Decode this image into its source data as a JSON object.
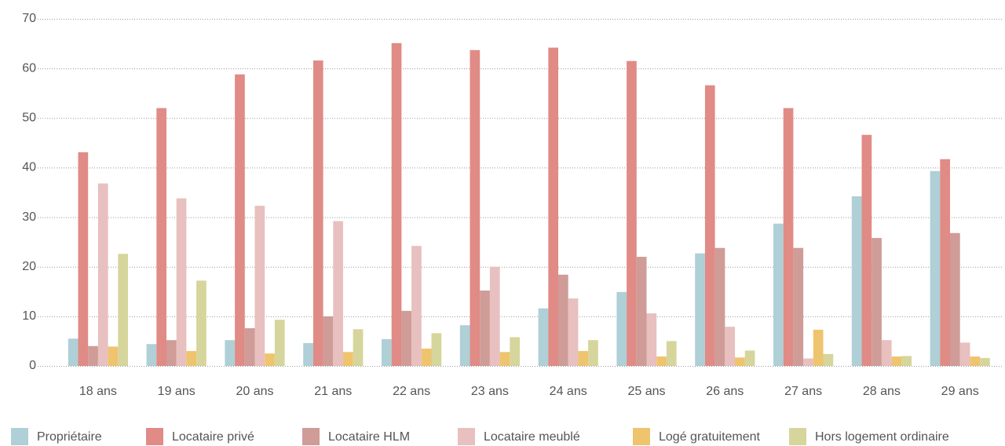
{
  "chart_data": {
    "type": "bar",
    "categories": [
      "18 ans",
      "19 ans",
      "20 ans",
      "21 ans",
      "22 ans",
      "23 ans",
      "24 ans",
      "25 ans",
      "26 ans",
      "27 ans",
      "28 ans",
      "29 ans"
    ],
    "series": [
      {
        "name": "Propriétaire",
        "color": "#aed0d6",
        "values": [
          5.5,
          4.4,
          5.2,
          4.6,
          5.4,
          8.2,
          11.6,
          14.9,
          22.7,
          28.7,
          34.2,
          39.3
        ]
      },
      {
        "name": "Locataire privé",
        "color": "#e08b86",
        "values": [
          43.1,
          52,
          58.8,
          61.6,
          65.1,
          63.7,
          64.2,
          61.5,
          56.6,
          52,
          46.6,
          41.7
        ]
      },
      {
        "name": "Locataire HLM",
        "color": "#cf9c97",
        "values": [
          4,
          5.2,
          7.6,
          10,
          11.1,
          15.2,
          18.4,
          22,
          23.8,
          23.8,
          25.8,
          26.8
        ]
      },
      {
        "name": "Locataire meublé",
        "color": "#e7c0bf",
        "values": [
          36.8,
          33.8,
          32.3,
          29.2,
          24.2,
          20,
          13.6,
          10.6,
          7.9,
          1.5,
          5.2,
          4.7
        ]
      },
      {
        "name": "Logé gratuitement",
        "color": "#efc46e",
        "values": [
          3.9,
          3,
          2.5,
          2.8,
          3.5,
          2.8,
          3,
          1.9,
          1.7,
          7.3,
          1.9,
          1.9
        ]
      },
      {
        "name": "Hors logement ordinaire",
        "color": "#d6d59b",
        "values": [
          22.6,
          17.2,
          9.3,
          7.4,
          6.6,
          5.8,
          5.2,
          5,
          3.1,
          2.4,
          2,
          1.6
        ]
      }
    ],
    "ylim": [
      0,
      70
    ],
    "yticks": [
      0,
      10,
      20,
      30,
      40,
      50,
      60,
      70
    ],
    "grid": true,
    "legend": "bottom"
  }
}
